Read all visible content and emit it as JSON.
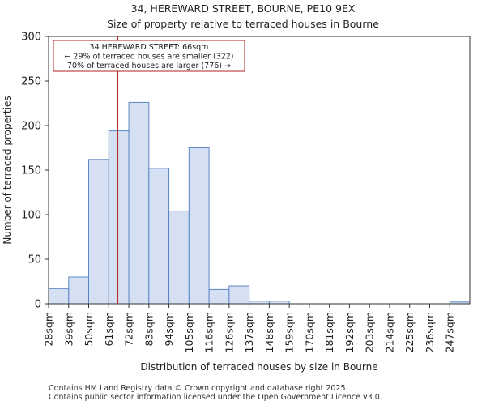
{
  "chart_data": {
    "type": "bar",
    "title": "34, HEREWARD STREET, BOURNE, PE10 9EX",
    "subtitle": "Size of property relative to terraced houses in Bourne",
    "xlabel": "Distribution of terraced houses by size in Bourne",
    "ylabel": "Number of terraced properties",
    "categories": [
      "28sqm",
      "39sqm",
      "50sqm",
      "61sqm",
      "72sqm",
      "83sqm",
      "94sqm",
      "105sqm",
      "116sqm",
      "126sqm",
      "137sqm",
      "148sqm",
      "159sqm",
      "170sqm",
      "181sqm",
      "192sqm",
      "203sqm",
      "214sqm",
      "225sqm",
      "236sqm",
      "247sqm"
    ],
    "values": [
      17,
      30,
      162,
      194,
      226,
      152,
      104,
      175,
      16,
      20,
      3,
      3,
      0,
      0,
      0,
      0,
      0,
      0,
      0,
      0,
      2
    ],
    "ylim": [
      0,
      300
    ],
    "yticks": [
      0,
      50,
      100,
      150,
      200,
      250,
      300
    ],
    "marker": {
      "value_sqm": 66,
      "lines": [
        "34 HEREWARD STREET: 66sqm",
        "← 29% of terraced houses are smaller (322)",
        "70% of terraced houses are larger (776) →"
      ]
    },
    "colors": {
      "bar_fill": "#d6e0f3",
      "bar_stroke": "#5b86c4",
      "marker": "#b22222"
    }
  },
  "footer": {
    "line1": "Contains HM Land Registry data © Crown copyright and database right 2025.",
    "line2": "Contains public sector information licensed under the Open Government Licence v3.0."
  }
}
